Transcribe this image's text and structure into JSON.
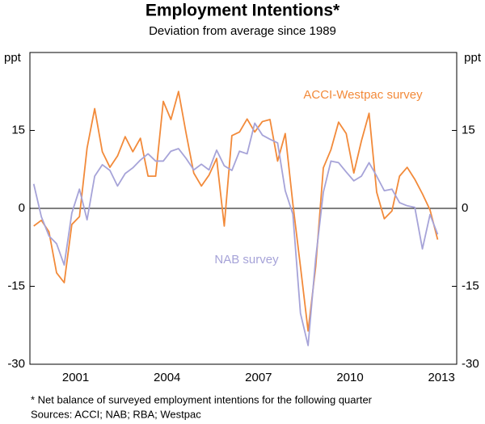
{
  "chart_data": {
    "type": "line",
    "title": "Employment Intentions*",
    "subtitle": "Deviation from average since 1989",
    "ylabel": "ppt",
    "annotations": [
      "ACCI-Westpac survey",
      "NAB survey"
    ],
    "footnotes": [
      "*  Net balance of surveyed employment intentions for the following quarter",
      "Sources: ACCI; NAB; RBA; Westpac"
    ],
    "x": [
      2000.125,
      2000.375,
      2000.625,
      2000.875,
      2001.125,
      2001.375,
      2001.625,
      2001.875,
      2002.125,
      2002.375,
      2002.625,
      2002.875,
      2003.125,
      2003.375,
      2003.625,
      2003.875,
      2004.125,
      2004.375,
      2004.625,
      2004.875,
      2005.125,
      2005.375,
      2005.625,
      2005.875,
      2006.125,
      2006.375,
      2006.625,
      2006.875,
      2007.125,
      2007.375,
      2007.625,
      2007.875,
      2008.125,
      2008.375,
      2008.625,
      2008.875,
      2009.125,
      2009.375,
      2009.625,
      2009.875,
      2010.125,
      2010.375,
      2010.625,
      2010.875,
      2011.125,
      2011.375,
      2011.625,
      2011.875,
      2012.125,
      2012.375,
      2012.625,
      2012.875,
      2013.125,
      2013.375
    ],
    "series": [
      {
        "name": "ACCI-Westpac survey",
        "color": "#f28a3a",
        "values": [
          -3.4,
          -2.3,
          -4.5,
          -12.4,
          -14.3,
          -3.1,
          -1.6,
          11.6,
          19.2,
          10.9,
          7.9,
          10.1,
          13.8,
          10.9,
          13.5,
          6.2,
          6.2,
          20.6,
          17.1,
          22.5,
          14.4,
          6.8,
          4.3,
          6.4,
          9.6,
          -3.4,
          14,
          14.7,
          17.2,
          14.7,
          16.7,
          17.1,
          9.1,
          14.4,
          0.9,
          -11.2,
          -23.6,
          -11.2,
          7.8,
          11.3,
          16.6,
          14.4,
          6.8,
          13,
          18.3,
          3.1,
          -2,
          -0.5,
          6.2,
          7.9,
          5.6,
          2.8,
          -0.3,
          -6
        ]
      },
      {
        "name": "NAB survey",
        "color": "#a6a3d8",
        "values": [
          4.7,
          -1.6,
          -5.3,
          -6.8,
          -10.9,
          -0.9,
          3.7,
          -2.2,
          6.2,
          8.4,
          7.3,
          4.3,
          6.7,
          7.8,
          9.3,
          10.5,
          9.1,
          9.1,
          11,
          11.5,
          9.6,
          7.4,
          8.5,
          7.4,
          11.2,
          8.2,
          7.3,
          11,
          10.5,
          16.4,
          14.1,
          13.3,
          12.6,
          3.4,
          -1.1,
          -20.2,
          -26.4,
          -9.6,
          3.1,
          9.1,
          8.8,
          7,
          5.3,
          6.2,
          8.8,
          6.2,
          3.4,
          3.7,
          1.1,
          0.5,
          0.2,
          -7.8,
          -1.2,
          -5
        ]
      }
    ],
    "xlim": [
      2000,
      2014
    ],
    "xticks": [
      {
        "value": 2001.5,
        "label": "2001"
      },
      {
        "value": 2004.5,
        "label": "2004"
      },
      {
        "value": 2007.5,
        "label": "2007"
      },
      {
        "value": 2010.5,
        "label": "2010"
      },
      {
        "value": 2013.5,
        "label": "2013"
      }
    ],
    "ylim": [
      -30,
      30
    ],
    "yticks": [
      -30,
      -15,
      0,
      15
    ],
    "grid": false
  }
}
